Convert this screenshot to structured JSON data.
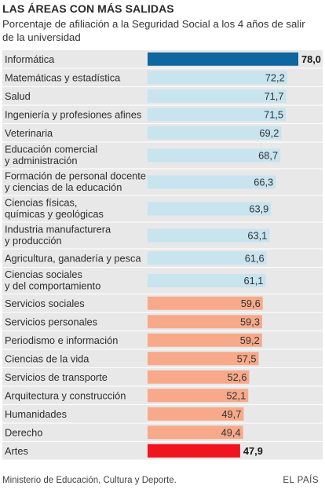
{
  "header": {
    "title": "LAS ÁREAS CON MÁS SALIDAS",
    "subtitle": "Porcentaje de afiliación a la Seguridad Social a los 4 años de salir de la universidad"
  },
  "footer": {
    "source": "Ministerio de Educación, Cultura y Deporte.",
    "brand": "EL PAÍS"
  },
  "colors": {
    "highlight_top": "#0f67a0",
    "upper_group": "#c7e4ef",
    "lower_group": "#f7a98a",
    "highlight_bottom": "#f0141e",
    "row_background": "#e8e8e8"
  },
  "chart_data": {
    "type": "bar",
    "orientation": "horizontal",
    "title": "LAS ÁREAS CON MÁS SALIDAS",
    "subtitle": "Porcentaje de afiliación a la Seguridad Social a los 4 años de salir de la universidad",
    "categories": [
      [
        "Informática"
      ],
      [
        "Matemáticas y estadística"
      ],
      [
        "Salud"
      ],
      [
        "Ingeniería y profesiones afines"
      ],
      [
        "Veterinaria"
      ],
      [
        "Educación comercial",
        "y administración"
      ],
      [
        "Formación de personal docente",
        "y ciencias de la educación"
      ],
      [
        "Ciencias físicas,",
        "químicas y geológicas"
      ],
      [
        "Industria manufacturera",
        "y producción"
      ],
      [
        "Agricultura, ganadería y pesca"
      ],
      [
        "Ciencias sociales",
        "y del comportamiento"
      ],
      [
        "Servicios sociales"
      ],
      [
        "Servicios personales"
      ],
      [
        "Periodismo e información"
      ],
      [
        "Ciencias de la vida"
      ],
      [
        "Servicios de transporte"
      ],
      [
        "Arquitectura y construcción"
      ],
      [
        "Humanidades"
      ],
      [
        "Derecho"
      ],
      [
        "Artes"
      ]
    ],
    "values": [
      78.0,
      72.2,
      71.7,
      71.5,
      69.2,
      68.7,
      66.3,
      63.9,
      63.1,
      61.6,
      61.1,
      59.6,
      59.3,
      59.2,
      57.5,
      52.6,
      52.1,
      49.7,
      49.4,
      47.9
    ],
    "value_labels": [
      "78,0",
      "72,2",
      "71,7",
      "71,5",
      "69,2",
      "68,7",
      "66,3",
      "63,9",
      "63,1",
      "61,6",
      "61,1",
      "59,6",
      "59,3",
      "59,2",
      "57,5",
      "52,6",
      "52,1",
      "49,7",
      "49,4",
      "47,9"
    ],
    "bold_value_labels": [
      true,
      false,
      false,
      false,
      false,
      false,
      false,
      false,
      false,
      false,
      false,
      false,
      false,
      false,
      false,
      false,
      false,
      false,
      false,
      true
    ],
    "groups": [
      "top",
      "upper",
      "upper",
      "upper",
      "upper",
      "upper",
      "upper",
      "upper",
      "upper",
      "upper",
      "upper",
      "lower",
      "lower",
      "lower",
      "lower",
      "lower",
      "lower",
      "lower",
      "lower",
      "bottom"
    ],
    "xlim": [
      0,
      78.0
    ],
    "grid": false,
    "legend": "none"
  }
}
